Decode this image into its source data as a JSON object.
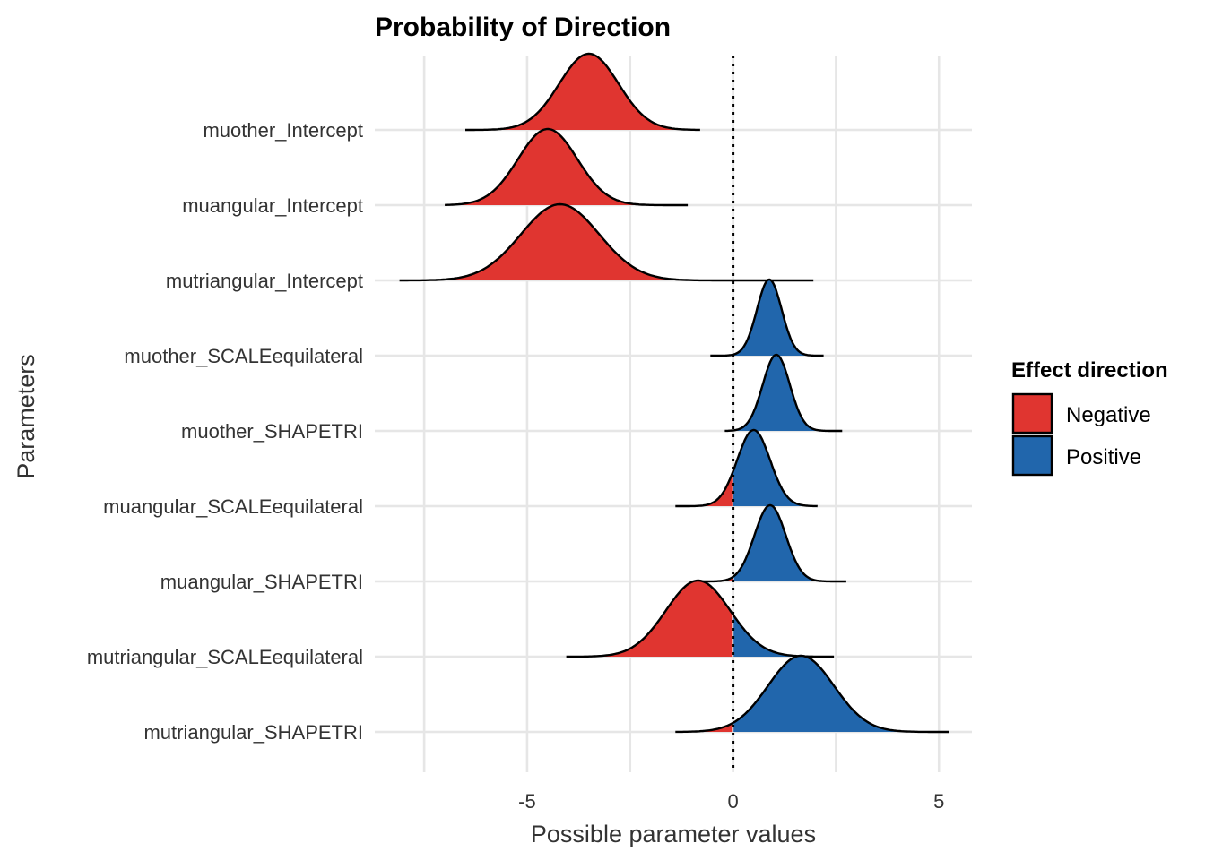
{
  "chart_data": {
    "type": "ridgeline",
    "title": "Probability of Direction",
    "xlabel": "Possible parameter values",
    "ylabel": "Parameters",
    "xlim": [
      -8.7,
      5.8
    ],
    "x_ticks": [
      -5,
      0,
      5
    ],
    "x_tick_labels": [
      "-5",
      "0",
      "5"
    ],
    "reference_line": {
      "x": 0,
      "style": "dotted"
    },
    "grid": true,
    "legend": {
      "title": "Effect direction",
      "position": "right",
      "items": [
        {
          "label": "Negative",
          "color": "#e03530"
        },
        {
          "label": "Positive",
          "color": "#2166ac"
        }
      ]
    },
    "parameters": [
      {
        "name": "muother_Intercept",
        "mode": -3.5,
        "sd": 0.72,
        "min": -6.5,
        "max": -0.8
      },
      {
        "name": "muangular_Intercept",
        "mode": -4.5,
        "sd": 0.72,
        "min": -7.0,
        "max": -1.1
      },
      {
        "name": "mutriangular_Intercept",
        "mode": -4.2,
        "sd": 0.95,
        "min": -8.1,
        "max": 1.95
      },
      {
        "name": "muother_SCALEequilateral",
        "mode": 0.88,
        "sd": 0.3,
        "min": -0.55,
        "max": 2.2
      },
      {
        "name": "muother_SHAPETRI",
        "mode": 1.05,
        "sd": 0.33,
        "min": -0.2,
        "max": 2.65
      },
      {
        "name": "muangular_SCALEequilateral",
        "mode": 0.5,
        "sd": 0.4,
        "min": -1.4,
        "max": 2.05
      },
      {
        "name": "muangular_SHAPETRI",
        "mode": 0.9,
        "sd": 0.38,
        "min": -0.8,
        "max": 2.75
      },
      {
        "name": "mutriangular_SCALEequilateral",
        "mode": -0.85,
        "sd": 0.78,
        "min": -4.05,
        "max": 2.45
      },
      {
        "name": "mutriangular_SHAPETRI",
        "mode": 1.65,
        "sd": 0.8,
        "min": -1.4,
        "max": 5.25
      }
    ]
  }
}
